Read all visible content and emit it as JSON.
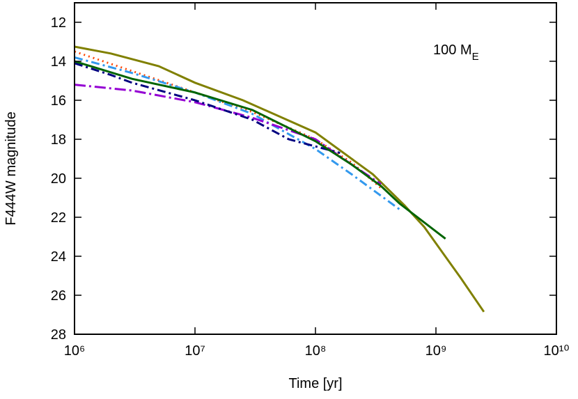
{
  "chart_data": {
    "type": "line",
    "xlabel": "Time [yr]",
    "ylabel": "F444W magnitude",
    "annotation": {
      "text": "100 M",
      "subscript": "E"
    },
    "xscale": "log",
    "yinverted": true,
    "xlim": [
      1000000,
      10000000000
    ],
    "ylim": [
      11,
      28
    ],
    "xticks": [
      {
        "value": 1000000,
        "label": "10⁶"
      },
      {
        "value": 10000000,
        "label": "10⁷"
      },
      {
        "value": 100000000,
        "label": "10⁸"
      },
      {
        "value": 1000000000,
        "label": "10⁹"
      },
      {
        "value": 10000000000,
        "label": "10¹⁰"
      }
    ],
    "yticks": [
      12,
      14,
      16,
      18,
      20,
      22,
      24,
      26,
      28
    ],
    "series": [
      {
        "color": "#808000",
        "dash": "solid",
        "x": [
          1000000,
          2000000,
          5000000,
          10000000,
          25000000,
          100000000,
          300000000,
          550000000,
          800000000,
          1600000000,
          2500000000
        ],
        "values": [
          13.25,
          13.6,
          14.25,
          15.1,
          16.0,
          17.65,
          19.8,
          21.4,
          22.5,
          25.1,
          26.85
        ]
      },
      {
        "color": "#ff4500",
        "dash": "dotted",
        "x": [
          1000000,
          3000000,
          10000000,
          30000000,
          100000000,
          200000000,
          350000000
        ],
        "values": [
          13.5,
          14.5,
          15.6,
          16.6,
          18.0,
          19.2,
          20.5
        ]
      },
      {
        "color": "#3399ee",
        "dash": "dashdot",
        "x": [
          1000000,
          3000000,
          10000000,
          30000000,
          100000000,
          200000000,
          500000000
        ],
        "values": [
          13.8,
          14.6,
          15.6,
          16.7,
          18.5,
          19.8,
          21.6
        ]
      },
      {
        "color": "#9400d3",
        "dash": "longdashdot",
        "x": [
          1000000,
          3000000,
          10000000,
          30000000,
          100000000,
          200000000,
          350000000
        ],
        "values": [
          15.2,
          15.5,
          16.1,
          16.9,
          18.0,
          19.3,
          20.3
        ]
      },
      {
        "color": "#000080",
        "dash": "dashdot",
        "x": [
          1000000,
          2000000,
          3000000,
          10000000,
          30000000,
          60000000,
          160000000
        ],
        "values": [
          14.1,
          14.7,
          15.1,
          16.0,
          17.0,
          18.0,
          18.7
        ]
      },
      {
        "color": "#006400",
        "dash": "solid",
        "x": [
          1000000,
          3000000,
          10000000,
          30000000,
          100000000,
          200000000,
          350000000,
          500000000,
          1200000000
        ],
        "values": [
          14.0,
          14.9,
          15.6,
          16.5,
          18.1,
          19.3,
          20.4,
          21.3,
          23.1
        ]
      }
    ]
  }
}
